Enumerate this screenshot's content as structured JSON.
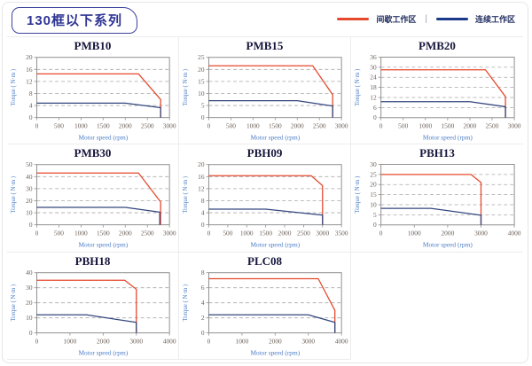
{
  "header": {
    "series_title": "130框以下系列",
    "legend_separator": "|",
    "legend": [
      {
        "name": "intermittent-zone",
        "label": "间歇工作区",
        "color": "#e5492d"
      },
      {
        "name": "continuous-zone",
        "label": "连续工作区",
        "color": "#1b3a8a"
      }
    ]
  },
  "colors": {
    "intermittent_line": "#e5492d",
    "continuous_line": "#33477e",
    "grid_line": "#a8a8a8",
    "plot_border": "#8f8f8f",
    "tick_text": "#6b5f57",
    "axis_label_text": "#4a7cc8",
    "title_text": "#16163c",
    "badge_accent": "#2e3494",
    "cell_border": "#ececec"
  },
  "chart_data": [
    {
      "type": "line",
      "title": "PMB10",
      "xlabel": "Motor speed (rpm)",
      "ylabel": "Torque ( N·m )",
      "xlim": [
        0,
        3000
      ],
      "xticks": [
        0,
        500,
        1000,
        1500,
        2000,
        2500,
        3000
      ],
      "ylim": [
        0,
        20
      ],
      "yticks": [
        0,
        4,
        8,
        12,
        16,
        20
      ],
      "grid": "horizontal-dashed",
      "series": [
        {
          "name": "间歇工作区",
          "color_key": "intermittent_line",
          "points": [
            [
              0,
              14.5
            ],
            [
              2300,
              14.5
            ],
            [
              2800,
              6
            ],
            [
              2800,
              0
            ]
          ]
        },
        {
          "name": "连续工作区",
          "color_key": "continuous_line",
          "points": [
            [
              0,
              4.8
            ],
            [
              2000,
              4.8
            ],
            [
              2800,
              3.3
            ],
            [
              2800,
              0
            ]
          ]
        }
      ]
    },
    {
      "type": "line",
      "title": "PMB15",
      "xlabel": "Motor speed (rpm)",
      "ylabel": "Torque ( N·m )",
      "xlim": [
        0,
        3000
      ],
      "xticks": [
        0,
        500,
        1000,
        1500,
        2000,
        2500,
        3000
      ],
      "ylim": [
        0,
        25
      ],
      "yticks": [
        0,
        5,
        10,
        15,
        20,
        25
      ],
      "grid": "horizontal-dashed",
      "series": [
        {
          "name": "间歇工作区",
          "color_key": "intermittent_line",
          "points": [
            [
              0,
              21.5
            ],
            [
              2350,
              21.5
            ],
            [
              2800,
              9.5
            ],
            [
              2800,
              0
            ]
          ]
        },
        {
          "name": "连续工作区",
          "color_key": "continuous_line",
          "points": [
            [
              0,
              7
            ],
            [
              2000,
              7
            ],
            [
              2800,
              4.8
            ],
            [
              2800,
              0
            ]
          ]
        }
      ]
    },
    {
      "type": "line",
      "title": "PMB20",
      "xlabel": "Motor speed (rpm)",
      "ylabel": "Torque ( N·m )",
      "xlim": [
        0,
        3000
      ],
      "xticks": [
        0,
        500,
        1000,
        1500,
        2000,
        2500,
        3000
      ],
      "ylim": [
        0,
        36
      ],
      "yticks": [
        0,
        6,
        12,
        18,
        24,
        30,
        36
      ],
      "grid": "horizontal-dashed",
      "series": [
        {
          "name": "间歇工作区",
          "color_key": "intermittent_line",
          "points": [
            [
              0,
              28.5
            ],
            [
              2350,
              28.5
            ],
            [
              2800,
              12.5
            ],
            [
              2800,
              0
            ]
          ]
        },
        {
          "name": "连续工作区",
          "color_key": "continuous_line",
          "points": [
            [
              0,
              9.5
            ],
            [
              2000,
              9.5
            ],
            [
              2800,
              6.5
            ],
            [
              2800,
              0
            ]
          ]
        }
      ]
    },
    {
      "type": "line",
      "title": "PMB30",
      "xlabel": "Motor speed (rpm)",
      "ylabel": "Torque ( N·m )",
      "xlim": [
        0,
        3000
      ],
      "xticks": [
        0,
        500,
        1000,
        1500,
        2000,
        2500,
        3000
      ],
      "ylim": [
        0,
        50
      ],
      "yticks": [
        0,
        10,
        20,
        30,
        40,
        50
      ],
      "grid": "horizontal-dashed",
      "series": [
        {
          "name": "间歇工作区",
          "color_key": "intermittent_line",
          "points": [
            [
              0,
              43
            ],
            [
              2300,
              43
            ],
            [
              2800,
              19
            ],
            [
              2800,
              0
            ]
          ]
        },
        {
          "name": "连续工作区",
          "color_key": "continuous_line",
          "points": [
            [
              0,
              14.5
            ],
            [
              2000,
              14.5
            ],
            [
              2780,
              10.5
            ],
            [
              2780,
              0
            ]
          ]
        }
      ]
    },
    {
      "type": "line",
      "title": "PBH09",
      "xlabel": "Motor speed (rpm)",
      "ylabel": "Torque ( N·m )",
      "xlim": [
        0,
        3500
      ],
      "xticks": [
        0,
        500,
        1000,
        1500,
        2000,
        2500,
        3000,
        3500
      ],
      "ylim": [
        0,
        20
      ],
      "yticks": [
        0,
        4,
        8,
        12,
        16,
        20
      ],
      "grid": "horizontal-dashed",
      "series": [
        {
          "name": "间歇工作区",
          "color_key": "intermittent_line",
          "points": [
            [
              0,
              16.3
            ],
            [
              2700,
              16.3
            ],
            [
              3000,
              13
            ],
            [
              3000,
              0
            ]
          ]
        },
        {
          "name": "连续工作区",
          "color_key": "continuous_line",
          "points": [
            [
              0,
              5.2
            ],
            [
              1500,
              5.2
            ],
            [
              3000,
              3.2
            ],
            [
              3000,
              0
            ]
          ]
        }
      ]
    },
    {
      "type": "line",
      "title": "PBH13",
      "xlabel": "Motor speed (rpm)",
      "ylabel": "Torque ( N·m )",
      "xlim": [
        0,
        4000
      ],
      "xticks": [
        0,
        1000,
        2000,
        3000,
        4000
      ],
      "ylim": [
        0,
        30
      ],
      "yticks": [
        0,
        5,
        10,
        15,
        20,
        25,
        30
      ],
      "grid": "horizontal-dashed",
      "series": [
        {
          "name": "间歇工作区",
          "color_key": "intermittent_line",
          "points": [
            [
              0,
              25
            ],
            [
              2700,
              25
            ],
            [
              3000,
              21
            ],
            [
              3000,
              0
            ]
          ]
        },
        {
          "name": "连续工作区",
          "color_key": "continuous_line",
          "points": [
            [
              0,
              8.2
            ],
            [
              1500,
              8.2
            ],
            [
              3000,
              4.8
            ],
            [
              3000,
              0
            ]
          ]
        }
      ]
    },
    {
      "type": "line",
      "title": "PBH18",
      "xlabel": "Motor speed (rpm)",
      "ylabel": "Torque ( N·m )",
      "xlim": [
        0,
        4000
      ],
      "xticks": [
        0,
        1000,
        2000,
        3000,
        4000
      ],
      "ylim": [
        0,
        40
      ],
      "yticks": [
        0,
        10,
        20,
        30,
        40
      ],
      "grid": "horizontal-dashed",
      "series": [
        {
          "name": "间歇工作区",
          "color_key": "intermittent_line",
          "points": [
            [
              0,
              35
            ],
            [
              2650,
              35
            ],
            [
              3000,
              29
            ],
            [
              3000,
              0
            ]
          ]
        },
        {
          "name": "连续工作区",
          "color_key": "continuous_line",
          "points": [
            [
              0,
              12
            ],
            [
              1500,
              12
            ],
            [
              3000,
              7
            ],
            [
              3000,
              0
            ]
          ]
        }
      ]
    },
    {
      "type": "line",
      "title": "PLC08",
      "xlabel": "Motor speed (rpm)",
      "ylabel": "Torque ( N·m )",
      "xlim": [
        0,
        4000
      ],
      "xticks": [
        0,
        1000,
        2000,
        3000,
        4000
      ],
      "ylim": [
        0,
        8
      ],
      "yticks": [
        0,
        2,
        4,
        6,
        8
      ],
      "grid": "horizontal-dashed",
      "series": [
        {
          "name": "间歇工作区",
          "color_key": "intermittent_line",
          "points": [
            [
              0,
              7.2
            ],
            [
              3300,
              7.2
            ],
            [
              3800,
              3
            ],
            [
              3800,
              0
            ]
          ]
        },
        {
          "name": "连续工作区",
          "color_key": "continuous_line",
          "points": [
            [
              0,
              2.4
            ],
            [
              3000,
              2.4
            ],
            [
              3800,
              1.4
            ],
            [
              3800,
              0
            ]
          ]
        }
      ]
    }
  ]
}
